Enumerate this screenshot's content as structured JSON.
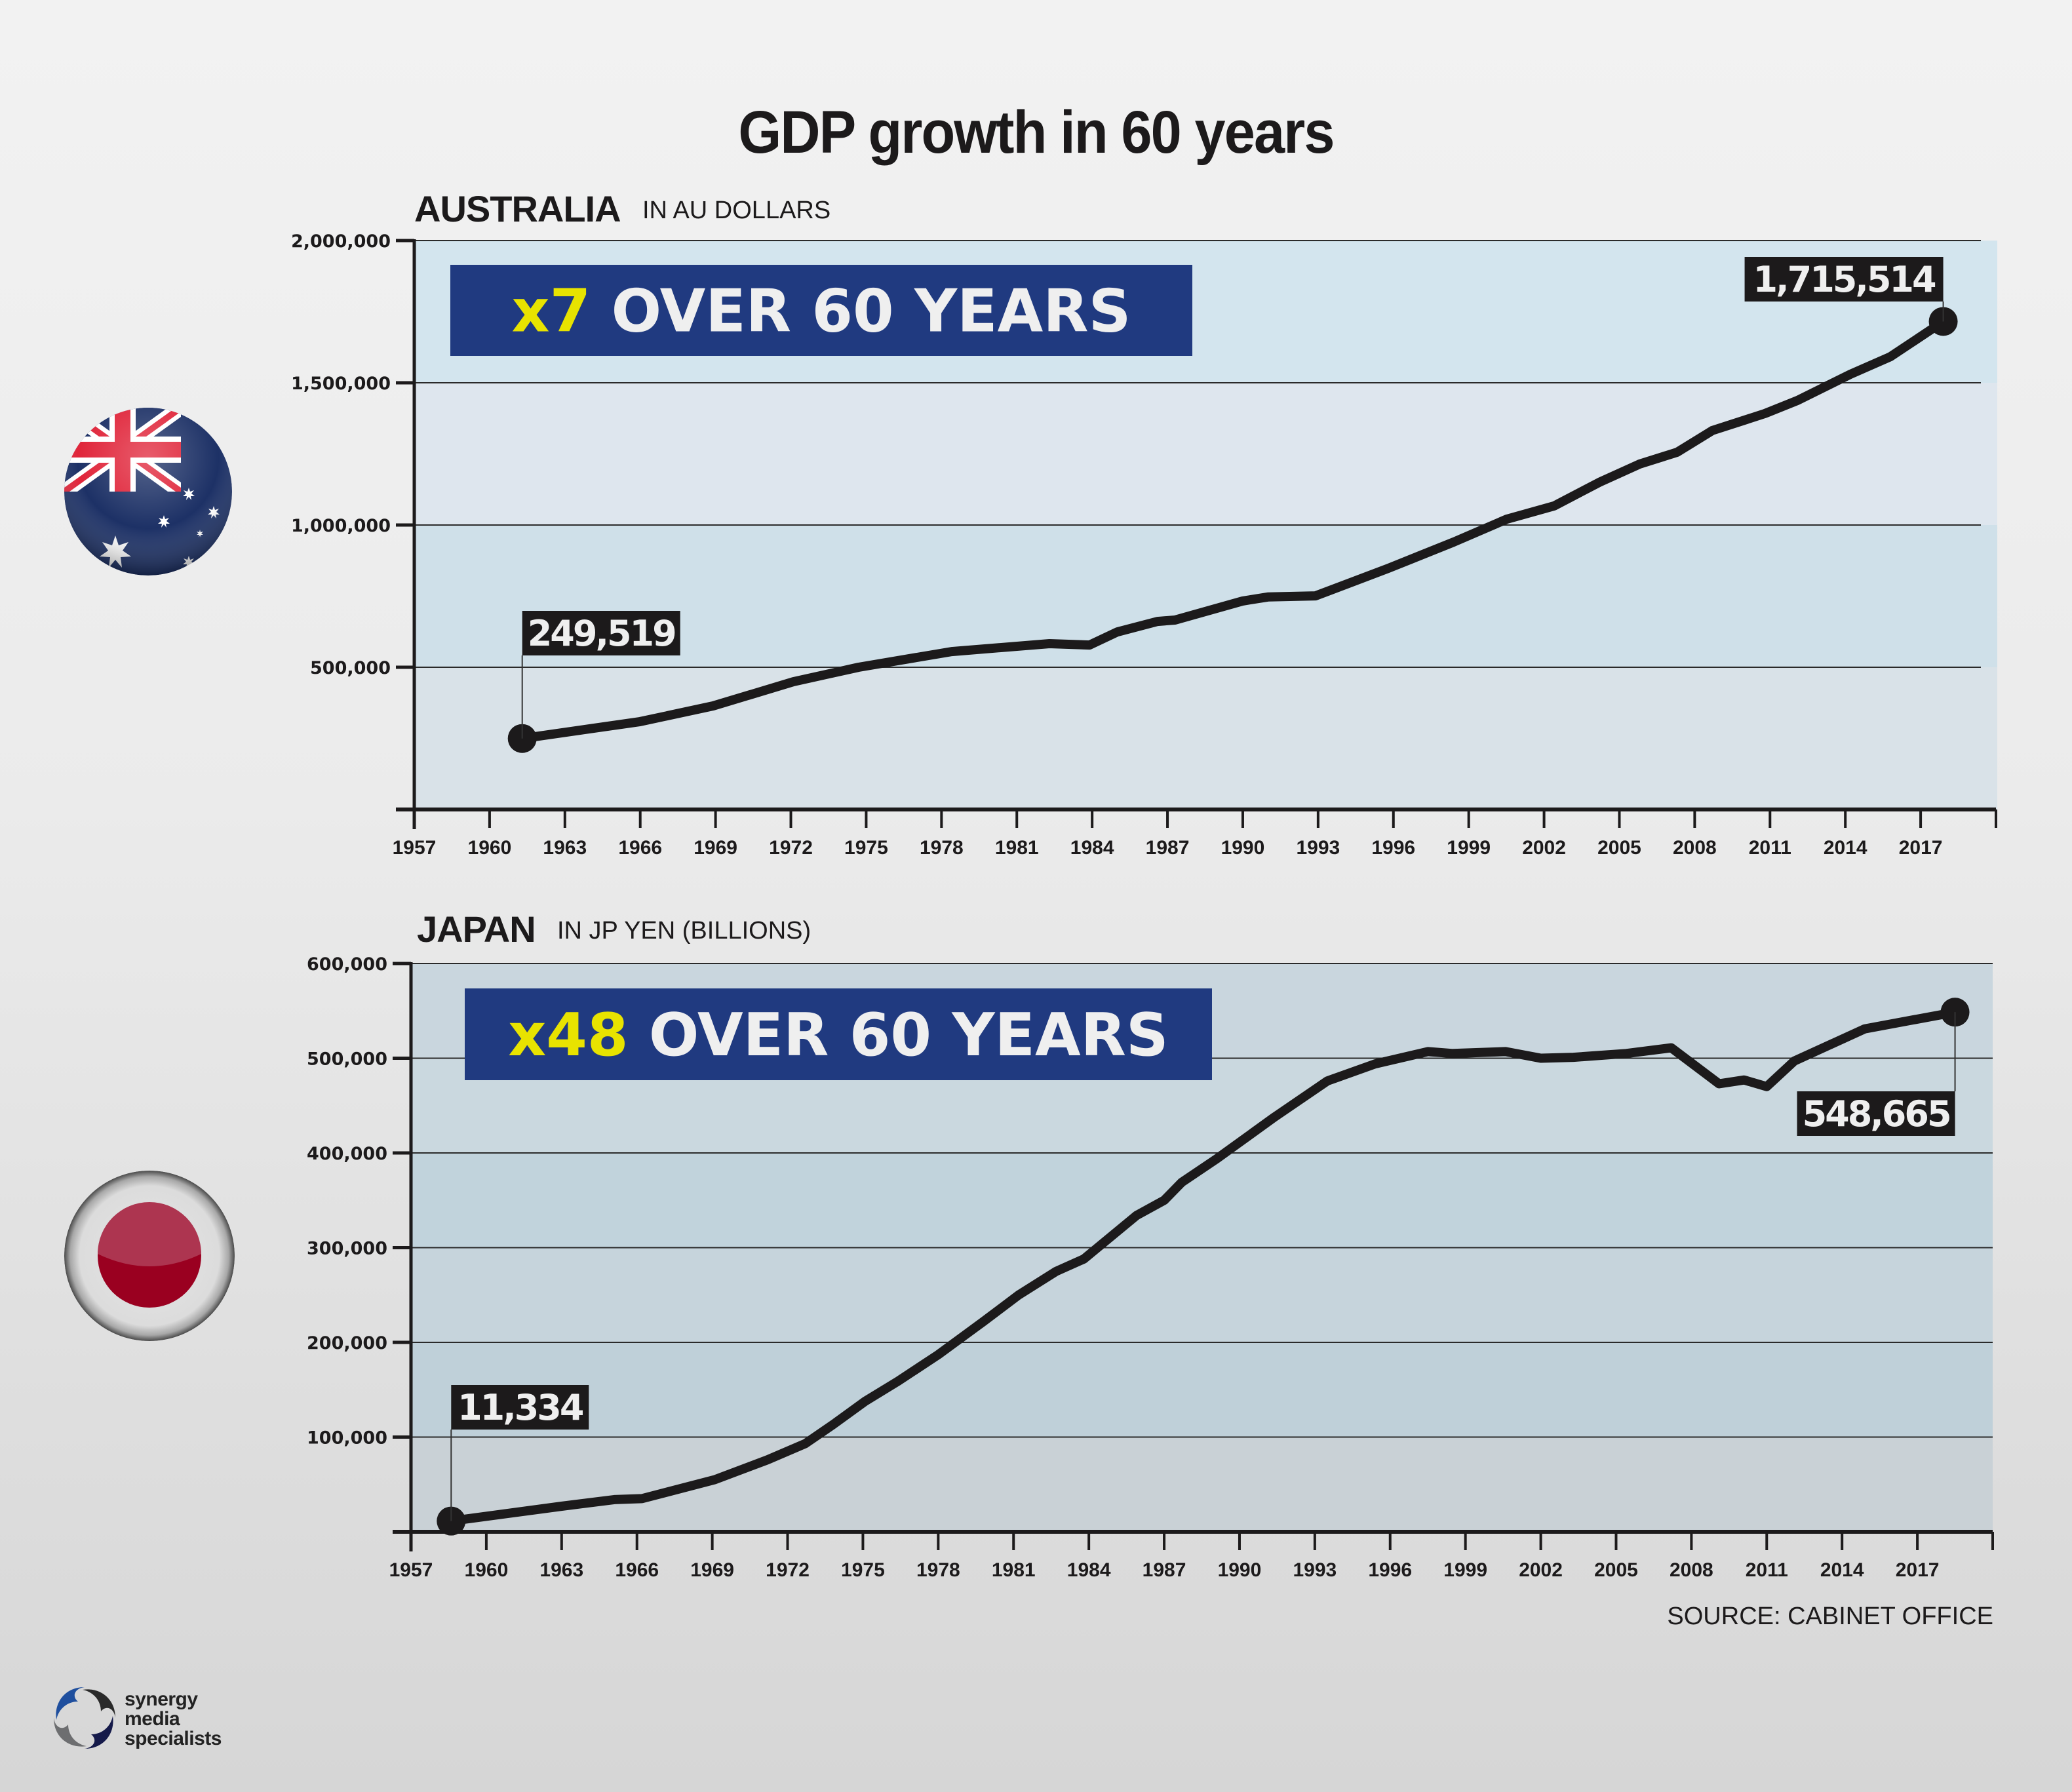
{
  "title": "GDP growth in 60 years",
  "source": "SOURCE: CABINET OFFICE",
  "logo": {
    "lines": [
      "synergy",
      "media",
      "specialists"
    ],
    "icon": "swirl-logo-icon"
  },
  "colors": {
    "banner_bg": "#203a80",
    "banner_highlight": "#e8e300",
    "banner_text": "#efefef",
    "line": "#1c1a1b",
    "callout_bg": "#1c1a1b",
    "callout_text": "#efefef"
  },
  "chart_data": [
    {
      "type": "line",
      "country": "AUSTRALIA",
      "unit_label": "IN AU DOLLARS",
      "flag_icon": "australia-flag-icon",
      "banner": {
        "highlight": "x7",
        "text": " OVER 60 YEARS"
      },
      "x_ticks": [
        "1957",
        "1960",
        "1963",
        "1966",
        "1969",
        "1972",
        "1975",
        "1978",
        "1981",
        "1984",
        "1987",
        "1990",
        "1993",
        "1996",
        "1999",
        "2002",
        "2005",
        "2008",
        "2011",
        "2014",
        "2017"
      ],
      "y_ticks": [
        "2,000,000",
        "1,500,000",
        "1,000,000",
        "500,000"
      ],
      "y_tick_values": [
        2000000,
        1500000,
        1000000,
        500000
      ],
      "xlim": [
        1957,
        2020
      ],
      "ylim": [
        0,
        2000000
      ],
      "grid": true,
      "start_label": "249,519",
      "end_label": "1,715,514",
      "x": [
        1961.3,
        1966,
        1968.9,
        1972.1,
        1974.7,
        1978.4,
        1982.3,
        1983.9,
        1985,
        1986.6,
        1987.3,
        1990,
        1991,
        1992.9,
        1995.8,
        1998.4,
        2000.5,
        2002.4,
        2004.2,
        2005.8,
        2007.3,
        2008.7,
        2010.8,
        2012.1,
        2014.2,
        2015.8,
        2017.9
      ],
      "values": [
        249519,
        309000,
        364000,
        449000,
        500000,
        555000,
        583000,
        578000,
        624000,
        661000,
        666000,
        733000,
        747000,
        751000,
        848000,
        940000,
        1020000,
        1067000,
        1150000,
        1214000,
        1256000,
        1332000,
        1392000,
        1438000,
        1530000,
        1592000,
        1715514
      ]
    },
    {
      "type": "line",
      "country": "JAPAN",
      "unit_label": "IN JP YEN (BILLIONS)",
      "flag_icon": "japan-flag-icon",
      "banner": {
        "highlight": "x48",
        "text": " OVER 60 YEARS"
      },
      "x_ticks": [
        "1957",
        "1960",
        "1963",
        "1966",
        "1969",
        "1972",
        "1975",
        "1978",
        "1981",
        "1984",
        "1987",
        "1990",
        "1993",
        "1996",
        "1999",
        "2002",
        "2005",
        "2008",
        "2011",
        "2014",
        "2017"
      ],
      "y_ticks": [
        "600,000",
        "500,000",
        "400,000",
        "300,000",
        "200,000",
        "100,000"
      ],
      "y_tick_values": [
        600000,
        500000,
        400000,
        300000,
        200000,
        100000
      ],
      "xlim": [
        1957,
        2020
      ],
      "ylim": [
        0,
        600000
      ],
      "grid": true,
      "start_label": "11,334",
      "end_label": "548,665",
      "x": [
        1958.6,
        1963,
        1965.1,
        1966.2,
        1969.1,
        1971.2,
        1972.7,
        1973.8,
        1975.1,
        1976.4,
        1978,
        1979.8,
        1981.2,
        1982.7,
        1983.8,
        1985.9,
        1987,
        1987.7,
        1989.1,
        1991.4,
        1993.5,
        1995.4,
        1997.5,
        1998.5,
        2000.6,
        2002,
        2003.3,
        2005.4,
        2007.2,
        2009.1,
        2010.1,
        2011,
        2012.1,
        2014.9,
        2018.5
      ],
      "values": [
        11334,
        27000,
        34000,
        35000,
        55000,
        76000,
        93000,
        113000,
        138000,
        159000,
        187000,
        222000,
        250000,
        275000,
        288000,
        334000,
        350000,
        369000,
        394000,
        438000,
        476000,
        494000,
        507000,
        505000,
        507000,
        500000,
        501000,
        505000,
        511000,
        473000,
        477000,
        470000,
        497000,
        531000,
        548665
      ]
    }
  ]
}
